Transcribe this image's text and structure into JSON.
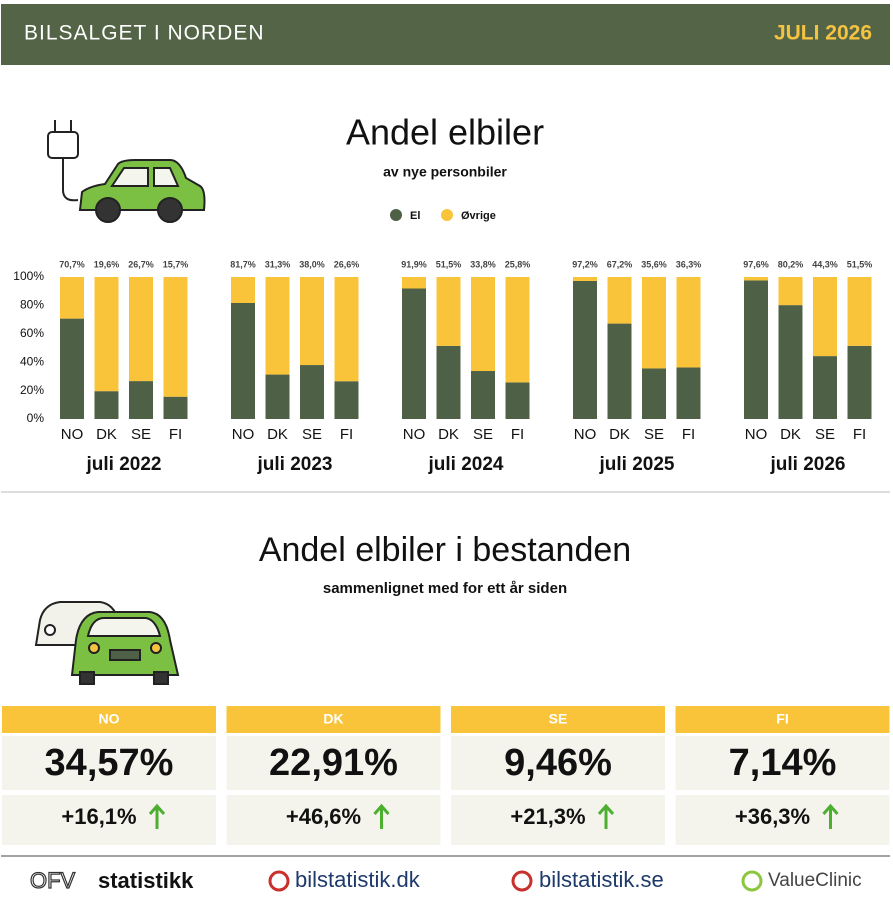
{
  "header": {
    "title": "BILSALGET I NORDEN",
    "date": "JULI 2026"
  },
  "chart_data": {
    "type": "bar",
    "stacked": true,
    "title": "Andel elbiler",
    "subtitle": "av nye personbiler",
    "groups": [
      "juli 2022",
      "juli 2023",
      "juli 2024",
      "juli 2025",
      "juli 2026"
    ],
    "categories": [
      "NO",
      "DK",
      "SE",
      "FI"
    ],
    "series": [
      {
        "name": "El",
        "color": "#4e6147",
        "values": [
          [
            70.7,
            19.6,
            26.7,
            15.7
          ],
          [
            81.7,
            31.3,
            38.0,
            26.6
          ],
          [
            91.9,
            51.5,
            33.8,
            25.8
          ],
          [
            97.2,
            67.2,
            35.6,
            36.3
          ],
          [
            97.6,
            80.2,
            44.3,
            51.5
          ]
        ],
        "value_labels": [
          [
            "70,7%",
            "19,6%",
            "26,7%",
            "15,7%"
          ],
          [
            "81,7%",
            "31,3%",
            "38,0%",
            "26,6%"
          ],
          [
            "91,9%",
            "51,5%",
            "33,8%",
            "25,8%"
          ],
          [
            "97,2%",
            "67,2%",
            "35,6%",
            "36,3%"
          ],
          [
            "97,6%",
            "80,2%",
            "44,3%",
            "51,5%"
          ]
        ]
      },
      {
        "name": "Øvrige",
        "color": "#f9c43a",
        "values": [
          [
            29.3,
            80.4,
            73.3,
            84.3
          ],
          [
            18.3,
            68.7,
            62.0,
            73.4
          ],
          [
            8.1,
            48.5,
            66.2,
            74.2
          ],
          [
            2.8,
            32.8,
            64.4,
            63.7
          ],
          [
            2.4,
            19.8,
            55.7,
            48.5
          ]
        ]
      }
    ],
    "ylim": [
      0,
      100
    ],
    "yticks": [
      {
        "value": 0,
        "label": "0%"
      },
      {
        "value": 20,
        "label": "20%"
      },
      {
        "value": 40,
        "label": "40%"
      },
      {
        "value": 60,
        "label": "60%"
      },
      {
        "value": 80,
        "label": "80%"
      },
      {
        "value": 100,
        "label": "100%"
      }
    ],
    "grid": false,
    "legend": "top"
  },
  "stock": {
    "title": "Andel elbiler i bestanden",
    "subtitle": "sammenlignet med for ett år siden",
    "cards": [
      {
        "country": "NO",
        "share": "34,57%",
        "change": "+16,1%"
      },
      {
        "country": "DK",
        "share": "22,91%",
        "change": "+46,6%"
      },
      {
        "country": "SE",
        "share": "9,46%",
        "change": "+21,3%"
      },
      {
        "country": "FI",
        "share": "7,14%",
        "change": "+36,3%"
      }
    ]
  },
  "footer": {
    "logos": [
      "OFV",
      "statistikk",
      "bilstatistik.dk",
      "bilstatistik.se",
      "ValueClinic"
    ]
  }
}
